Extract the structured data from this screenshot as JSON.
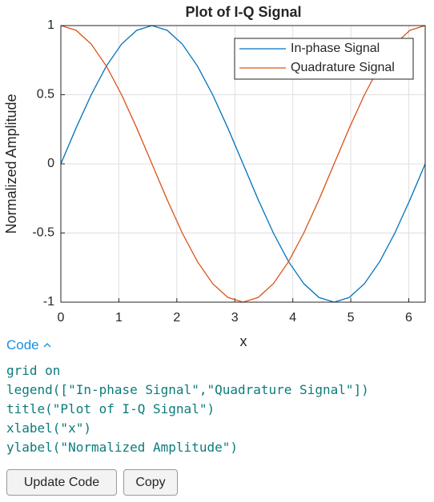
{
  "chart_data": {
    "type": "line",
    "title": "Plot of I-Q Signal",
    "xlabel": "x",
    "ylabel": "Normalized Amplitude",
    "x": [
      0,
      0.262,
      0.524,
      0.785,
      1.047,
      1.309,
      1.571,
      1.833,
      2.094,
      2.356,
      2.618,
      2.88,
      3.142,
      3.403,
      3.665,
      3.927,
      4.189,
      4.451,
      4.712,
      4.974,
      5.236,
      5.498,
      5.76,
      6.021,
      6.283
    ],
    "series": [
      {
        "name": "In-phase Signal",
        "color": "#0072bd",
        "values": [
          0,
          0.259,
          0.5,
          0.707,
          0.866,
          0.966,
          1,
          0.966,
          0.866,
          0.707,
          0.5,
          0.259,
          0,
          -0.259,
          -0.5,
          -0.707,
          -0.866,
          -0.966,
          -1,
          -0.966,
          -0.866,
          -0.707,
          -0.5,
          -0.259,
          0
        ]
      },
      {
        "name": "Quadrature Signal",
        "color": "#d95319",
        "values": [
          1,
          0.966,
          0.866,
          0.707,
          0.5,
          0.259,
          0,
          -0.259,
          -0.5,
          -0.707,
          -0.866,
          -0.966,
          -1,
          -0.966,
          -0.866,
          -0.707,
          -0.5,
          -0.259,
          0,
          0.259,
          0.5,
          0.707,
          0.866,
          0.966,
          1
        ]
      }
    ],
    "xlim": [
      0,
      6.283
    ],
    "ylim": [
      -1,
      1
    ],
    "xticks": [
      0,
      1,
      2,
      3,
      4,
      5,
      6
    ],
    "yticks": [
      -1,
      -0.5,
      0,
      0.5,
      1
    ],
    "grid": true,
    "legend": "top-right"
  },
  "code": {
    "toggle_label": "Code",
    "lines": [
      "grid on",
      "legend([\"In-phase Signal\",\"Quadrature Signal\"])",
      "title(\"Plot of I-Q Signal\")",
      "xlabel(\"x\")",
      "ylabel(\"Normalized Amplitude\")"
    ]
  },
  "buttons": [
    "Update Code",
    "Copy"
  ]
}
